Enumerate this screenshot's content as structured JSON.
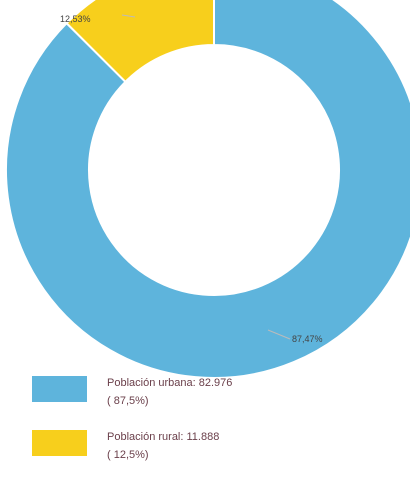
{
  "chart_data": {
    "type": "pie",
    "style": "donut",
    "title": "",
    "slices": [
      {
        "label": "Población urbana",
        "value": 82976,
        "value_text": "82.976",
        "percent": 87.47,
        "data_label": "87,47%",
        "legend_percent_text": "( 87,5%)",
        "color": "#5eb4dc"
      },
      {
        "label": "Población rural",
        "value": 11888,
        "value_text": "11.888",
        "percent": 12.53,
        "data_label": "12,53%",
        "legend_percent_text": "( 12,5%)",
        "color": "#f7cf1c"
      }
    ],
    "legend_position": "bottom-left"
  },
  "legend": {
    "items": [
      {
        "label_line": "Población urbana:  82.976",
        "percent_line": "( 87,5%)"
      },
      {
        "label_line": "Población rural:  11.888",
        "percent_line": "( 12,5%)"
      }
    ]
  }
}
